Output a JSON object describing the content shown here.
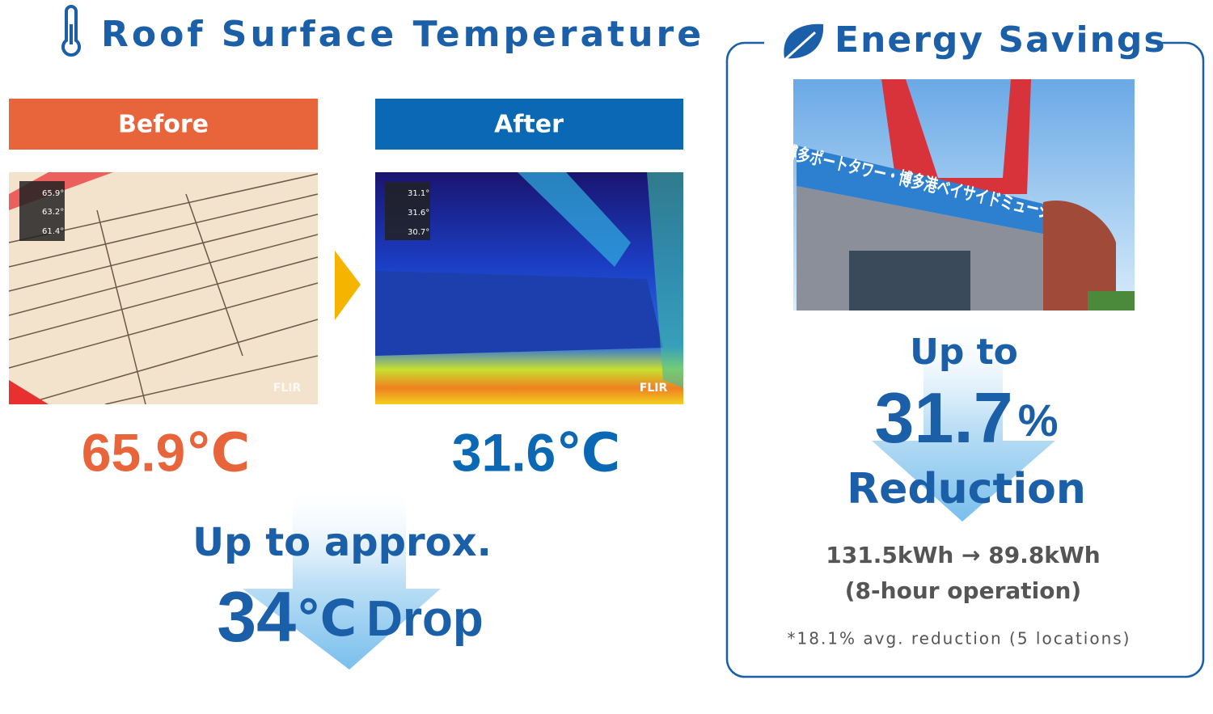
{
  "left": {
    "title": "Roof Surface Temperature",
    "before": {
      "label": "Before",
      "readings": [
        "65.9°",
        "63.2°",
        "61.4°"
      ],
      "watermark": "FLIR",
      "temperature": "65.9℃"
    },
    "after": {
      "label": "After",
      "readings": [
        "31.1°",
        "31.6°",
        "30.7°"
      ],
      "watermark": "FLIR",
      "temperature": "31.6℃"
    },
    "summary": {
      "line1": "Up to approx.",
      "number": "34",
      "unit": "℃",
      "word": "Drop"
    }
  },
  "right": {
    "title": "Energy Savings",
    "photo_sign": "博多ポートタワー・博多港ベイサイドミュージアム",
    "lead": "Up to",
    "number": "31.7",
    "unit": "%",
    "word": "Reduction",
    "detail": "131.5kWh → 89.8kWh",
    "condition": "(8-hour operation)",
    "note": "*18.1% avg. reduction (5 locations)"
  }
}
